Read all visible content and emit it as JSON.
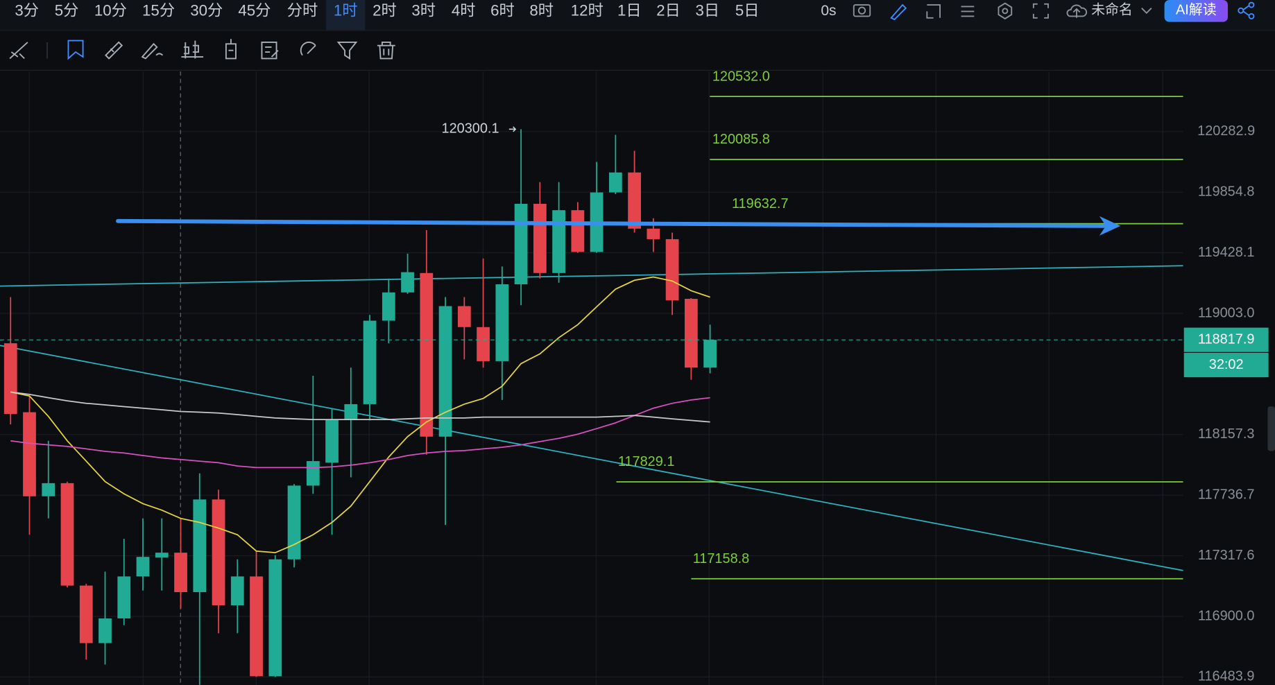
{
  "toolbar": {
    "intervals": [
      "3分",
      "5分",
      "10分",
      "15分",
      "30分",
      "45分",
      "分时",
      "1时",
      "2时",
      "3时",
      "4时",
      "6时",
      "8时",
      "12时",
      "1日",
      "2日",
      "3日",
      "5日"
    ],
    "active_index": 7,
    "timer": "0s",
    "layout_name": "未命名",
    "ai_button": "AI解读"
  },
  "chart_data": {
    "type": "candlestick",
    "log_scale": true,
    "grid": true,
    "ylim": [
      116428,
      120709
    ],
    "yticks": [
      120282.9,
      119854.8,
      119428.1,
      {
        "value": 119003,
        "label": "119003.0"
      },
      118157.3,
      117736.7,
      117317.6,
      {
        "value": 116900,
        "label": "116900.0"
      },
      116483.9
    ],
    "up_color": "#22ab94",
    "down_color": "#e5444d",
    "candles": {
      "open": [
        118794,
        118313,
        117729,
        117820,
        117112,
        116716,
        116886,
        117175,
        117305,
        117339,
        117067,
        117707,
        116976,
        117175,
        116489,
        117293,
        117803,
        117962,
        118262,
        118369,
        118952,
        119150,
        119286,
        118143,
        119054,
        118907,
        118669,
        119207,
        119773,
        119286,
        119728,
        119434,
        119853,
        119994,
        119598,
        119524,
        119105,
        118624
      ],
      "high": [
        119117,
        118426,
        118114,
        117830,
        117124,
        117208,
        117435,
        117576,
        117576,
        117576,
        117888,
        117775,
        117293,
        117350,
        117322,
        117814,
        118567,
        118341,
        118624,
        118992,
        119247,
        119422,
        119587,
        119117,
        119117,
        119388,
        119332,
        120300.1,
        119926,
        119926,
        119785,
        120068,
        120260,
        120147,
        119671,
        119570,
        119110,
        118924
      ],
      "low": [
        118228,
        117463,
        117576,
        117100,
        116603,
        116569,
        116840,
        117078,
        117078,
        116954,
        116430,
        116784,
        116784,
        116484,
        116484,
        117237,
        117746,
        117463,
        117860,
        118256,
        118794,
        119140,
        118018,
        117531,
        118681,
        118624,
        118398,
        119060,
        119247,
        119218,
        119428,
        119428,
        119841,
        119570,
        119434,
        118992,
        118539,
        118584
      ],
      "close": [
        118301,
        117729,
        117820,
        117112,
        116716,
        116886,
        117175,
        117310,
        117339,
        117067,
        117707,
        116976,
        117175,
        116489,
        117293,
        117803,
        117973,
        118262,
        118369,
        118952,
        119150,
        119292,
        118143,
        119054,
        118907,
        118669,
        119207,
        119773,
        119286,
        119728,
        119434,
        119853,
        119994,
        119598,
        119524,
        119094,
        118624,
        118817.9
      ]
    },
    "series": [
      {
        "color": "#e8d43c",
        "values": [
          118454,
          118426,
          118284,
          118114,
          117973,
          117831,
          117746,
          117678,
          117633,
          117576,
          117548,
          117509,
          117463,
          117350,
          117339,
          117395,
          117463,
          117548,
          117661,
          117831,
          118001,
          118143,
          118245,
          118313,
          118369,
          118409,
          118494,
          118652,
          118720,
          118833,
          118924,
          119049,
          119173,
          119235,
          119258,
          119230,
          119162,
          119117
        ]
      },
      {
        "color": "#d94fc0",
        "values": [
          118114,
          118097,
          118086,
          118075,
          118058,
          118041,
          118029,
          118012,
          117995,
          117984,
          117973,
          117962,
          117939,
          117928,
          117928,
          117928,
          117928,
          117933,
          117945,
          117962,
          117984,
          118012,
          118029,
          118041,
          118046,
          118058,
          118069,
          118086,
          118109,
          118131,
          118160,
          118199,
          118239,
          118290,
          118341,
          118375,
          118398,
          118414
        ]
      },
      {
        "color": "#c9c9c9",
        "values": [
          118454,
          118437,
          118414,
          118392,
          118375,
          118364,
          118352,
          118341,
          118330,
          118318,
          118313,
          118307,
          118296,
          118284,
          118273,
          118267,
          118262,
          118262,
          118262,
          118262,
          118262,
          118267,
          118273,
          118273,
          118273,
          118279,
          118279,
          118279,
          118279,
          118279,
          118279,
          118279,
          118284,
          118290,
          118279,
          118267,
          118256,
          118245
        ]
      }
    ],
    "level_color": "#7ccf3a",
    "levels": [
      {
        "value": 120532,
        "label": "120532.0"
      },
      120085.8,
      119632.7,
      117829.1,
      117158.8
    ],
    "high_annotation": 120300.1,
    "last_price": 118817.9,
    "countdown": "32:02"
  }
}
